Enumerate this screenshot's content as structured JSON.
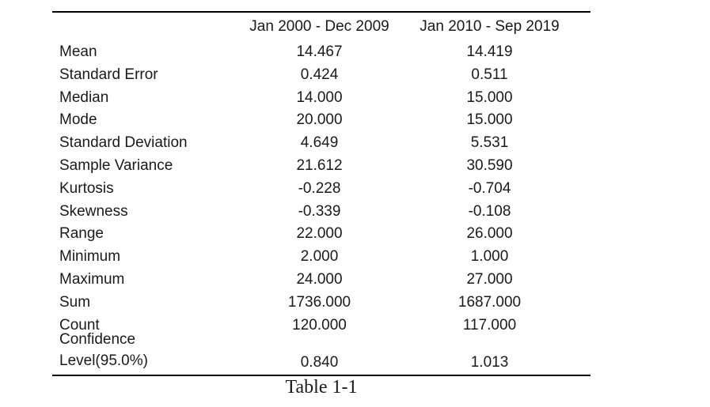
{
  "table": {
    "columns": [
      "Jan 2000 - Dec 2009",
      "Jan 2010 - Sep 2019"
    ],
    "rows": [
      {
        "label": "Mean",
        "v1": "14.467",
        "v2": "14.419"
      },
      {
        "label": "Standard Error",
        "v1": "0.424",
        "v2": "0.511"
      },
      {
        "label": "Median",
        "v1": "14.000",
        "v2": "15.000"
      },
      {
        "label": "Mode",
        "v1": "20.000",
        "v2": "15.000"
      },
      {
        "label": "Standard Deviation",
        "v1": "4.649",
        "v2": "5.531"
      },
      {
        "label": "Sample Variance",
        "v1": "21.612",
        "v2": "30.590"
      },
      {
        "label": "Kurtosis",
        "v1": "-0.228",
        "v2": "-0.704"
      },
      {
        "label": "Skewness",
        "v1": "-0.339",
        "v2": "-0.108"
      },
      {
        "label": "Range",
        "v1": "22.000",
        "v2": "26.000"
      },
      {
        "label": "Minimum",
        "v1": "2.000",
        "v2": "1.000"
      },
      {
        "label": "Maximum",
        "v1": "24.000",
        "v2": "27.000"
      },
      {
        "label": "Sum",
        "v1": "1736.000",
        "v2": "1687.000"
      },
      {
        "label": "Count",
        "v1": "120.000",
        "v2": "117.000"
      },
      {
        "label": "Confidence\nLevel(95.0%)",
        "v1": "0.840",
        "v2": "1.013"
      }
    ],
    "caption": "Table 1-1"
  },
  "colors": {
    "text": "#1a1a1a",
    "rule": "#000000",
    "background": "#ffffff"
  }
}
